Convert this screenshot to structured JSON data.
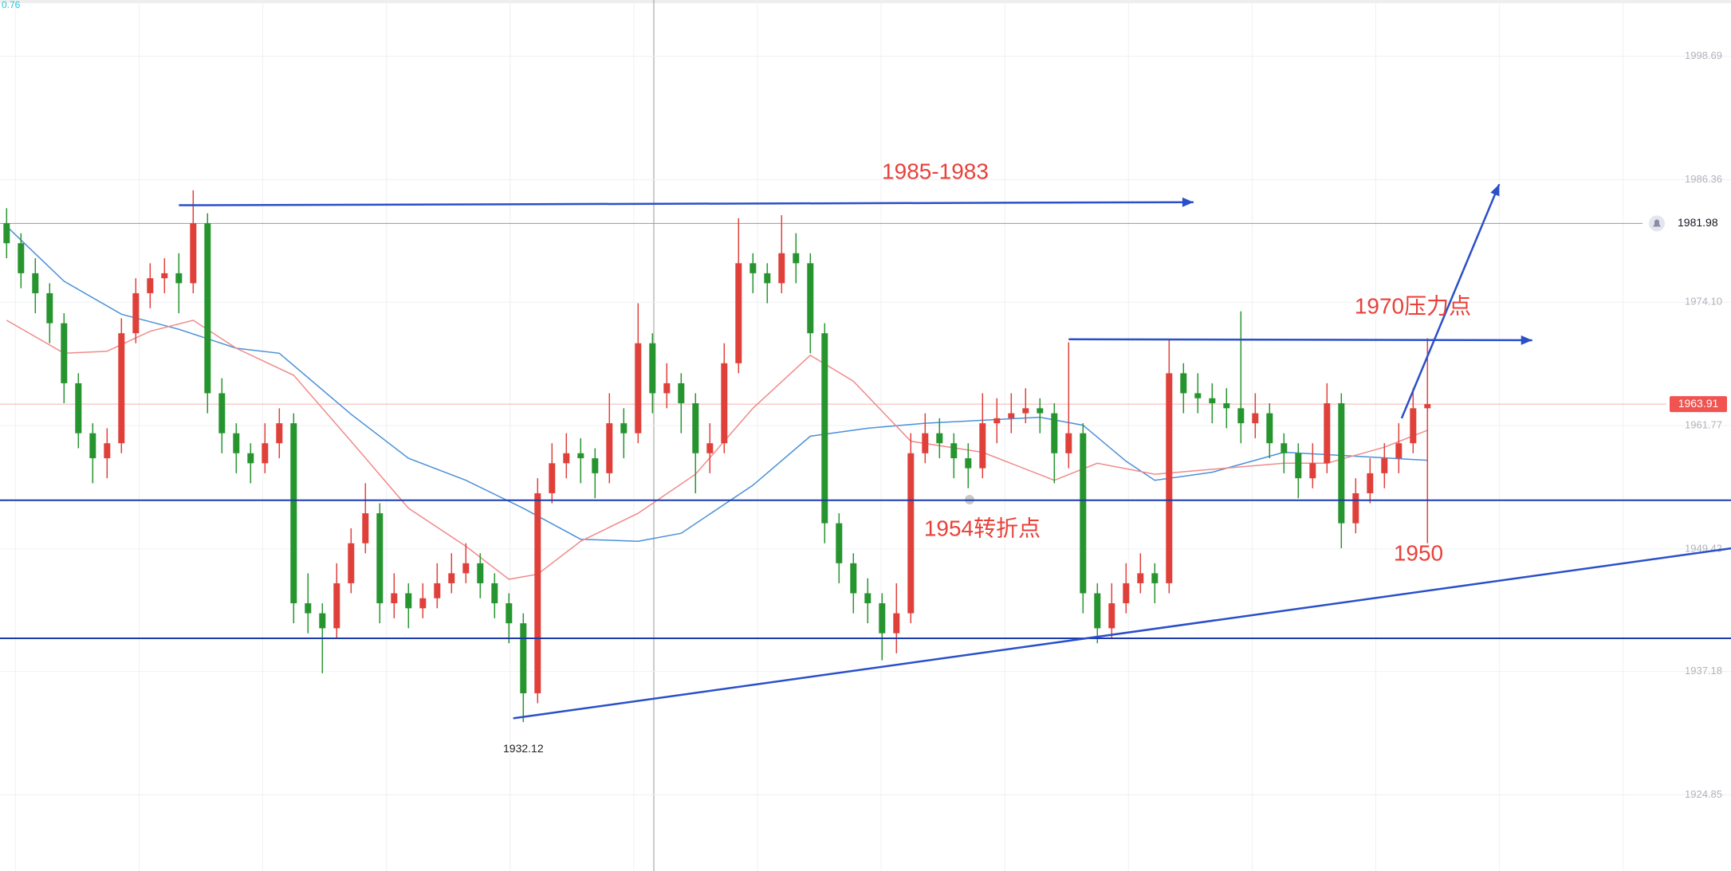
{
  "top_left_value": 0.76,
  "chart_data": {
    "type": "candlestick",
    "up_color": "#e0403a",
    "down_color": "#27952f",
    "ylim": [
      1917.23,
      2004.32
    ],
    "yticks": [
      1998.69,
      1986.36,
      {
        "value": 1974.1,
        "label": "1974.10"
      },
      1961.77,
      1949.43,
      1937.18,
      1924.85
    ],
    "grid": true,
    "candles": [
      [
        1982,
        1983.5,
        1978.5,
        1980
      ],
      [
        1980,
        1981,
        1975.5,
        1977
      ],
      [
        1977,
        1978.5,
        1973,
        1975
      ],
      [
        1975,
        1976,
        1970,
        1972
      ],
      [
        1972,
        1973,
        1964,
        1966
      ],
      [
        1966,
        1967,
        1959.5,
        1961
      ],
      [
        1961,
        1962,
        1956,
        1958.5
      ],
      [
        1958.5,
        1961.5,
        1956.5,
        1960
      ],
      [
        1960,
        1972.5,
        1959,
        1971
      ],
      [
        1971,
        1976.5,
        1970,
        1975
      ],
      [
        1975,
        1978,
        1973.5,
        1976.5
      ],
      [
        1976.5,
        1978.5,
        1975,
        1977
      ],
      [
        1977,
        1979,
        1973,
        1976
      ],
      [
        1976,
        1985.3,
        1975,
        1982
      ],
      [
        1982,
        1983,
        1963,
        1965
      ],
      [
        1965,
        1966.5,
        1959,
        1961
      ],
      [
        1961,
        1962,
        1957,
        1959
      ],
      [
        1959,
        1960,
        1956,
        1958
      ],
      [
        1958,
        1962,
        1957,
        1960
      ],
      [
        1960,
        1963.5,
        1958.5,
        1962
      ],
      [
        1962,
        1963,
        1942,
        1944
      ],
      [
        1944,
        1947,
        1941,
        1943
      ],
      [
        1943,
        1944,
        1937,
        1941.5
      ],
      [
        1941.5,
        1948,
        1940.5,
        1946
      ],
      [
        1946,
        1951.5,
        1945,
        1950
      ],
      [
        1950,
        1956,
        1949,
        1953
      ],
      [
        1953,
        1954,
        1942,
        1944
      ],
      [
        1944,
        1947,
        1942.5,
        1945
      ],
      [
        1945,
        1946,
        1941.5,
        1943.5
      ],
      [
        1943.5,
        1946,
        1942.5,
        1944.5
      ],
      [
        1944.5,
        1948,
        1943.5,
        1946
      ],
      [
        1946,
        1949,
        1945,
        1947
      ],
      [
        1947,
        1950,
        1946,
        1948
      ],
      [
        1948,
        1949,
        1944.5,
        1946
      ],
      [
        1946,
        1947,
        1942.5,
        1944
      ],
      [
        1944,
        1945,
        1940,
        1942
      ],
      [
        1942,
        1943,
        1932.12,
        1935
      ],
      [
        1935,
        1956.5,
        1934,
        1955
      ],
      [
        1955,
        1960,
        1954,
        1958
      ],
      [
        1958,
        1961,
        1956.5,
        1959
      ],
      [
        1959,
        1960.5,
        1956,
        1958.5
      ],
      [
        1958.5,
        1959.5,
        1954.5,
        1957
      ],
      [
        1957,
        1965,
        1956,
        1962
      ],
      [
        1962,
        1963.5,
        1958.5,
        1961
      ],
      [
        1961,
        1974,
        1960,
        1970
      ],
      [
        1970,
        1971,
        1963,
        1965
      ],
      [
        1965,
        1968,
        1963.5,
        1966
      ],
      [
        1966,
        1967,
        1961,
        1964
      ],
      [
        1964,
        1965,
        1955,
        1959
      ],
      [
        1959,
        1962,
        1957,
        1960
      ],
      [
        1960,
        1970,
        1959,
        1968
      ],
      [
        1968,
        1982.5,
        1967,
        1978
      ],
      [
        1978,
        1979,
        1975,
        1977
      ],
      [
        1977,
        1978,
        1974,
        1976
      ],
      [
        1976,
        1982.8,
        1975,
        1979
      ],
      [
        1979,
        1981,
        1976,
        1978
      ],
      [
        1978,
        1979,
        1969,
        1971
      ],
      [
        1971,
        1972,
        1950,
        1952
      ],
      [
        1952,
        1953,
        1946,
        1948
      ],
      [
        1948,
        1949,
        1943,
        1945
      ],
      [
        1945,
        1946.5,
        1942,
        1944
      ],
      [
        1944,
        1945,
        1938.3,
        1941
      ],
      [
        1941,
        1946,
        1939,
        1943
      ],
      [
        1943,
        1961,
        1942,
        1959
      ],
      [
        1959,
        1963,
        1958,
        1961
      ],
      [
        1961,
        1962.5,
        1958.5,
        1960
      ],
      [
        1960,
        1961,
        1956.5,
        1958.5
      ],
      [
        1958.5,
        1960,
        1955.5,
        1957.5
      ],
      [
        1957.5,
        1965,
        1956.5,
        1962
      ],
      [
        1962,
        1964.5,
        1960,
        1962.5
      ],
      [
        1962.5,
        1965,
        1961,
        1963
      ],
      [
        1963,
        1965.5,
        1962,
        1963.5
      ],
      [
        1963.5,
        1964.5,
        1961,
        1963
      ],
      [
        1963,
        1964,
        1956,
        1959
      ],
      [
        1959,
        1970.1,
        1957.5,
        1961
      ],
      [
        1961,
        1962,
        1943,
        1945
      ],
      [
        1945,
        1946,
        1940,
        1941.5
      ],
      [
        1941.5,
        1946,
        1940.5,
        1944
      ],
      [
        1944,
        1948,
        1943,
        1946
      ],
      [
        1946,
        1949,
        1945,
        1947
      ],
      [
        1947,
        1948,
        1944,
        1946
      ],
      [
        1946,
        1970.3,
        1945,
        1967
      ],
      [
        1967,
        1968,
        1963,
        1965
      ],
      [
        1965,
        1967,
        1963,
        1964.5
      ],
      [
        1964.5,
        1966,
        1962,
        1964
      ],
      [
        1964,
        1965.5,
        1961.5,
        1963.5
      ],
      [
        1963.5,
        1973.2,
        1960,
        1962
      ],
      [
        1962,
        1965,
        1960.5,
        1963
      ],
      [
        1963,
        1964,
        1958.5,
        1960
      ],
      [
        1960,
        1961,
        1957,
        1959
      ],
      [
        1959,
        1960,
        1954.5,
        1956.5
      ],
      [
        1956.5,
        1960,
        1955.5,
        1958
      ],
      [
        1958,
        1966,
        1957,
        1964
      ],
      [
        1964,
        1965,
        1949.5,
        1952
      ],
      [
        1952,
        1956.5,
        1951,
        1955
      ],
      [
        1955,
        1958.5,
        1954,
        1957
      ],
      [
        1957,
        1960,
        1955.5,
        1958.5
      ],
      [
        1958.5,
        1962,
        1957,
        1960
      ],
      [
        1960,
        1965.5,
        1959,
        1963.5
      ],
      [
        1963.5,
        1970.5,
        1950,
        1963.91
      ]
    ],
    "moving_averages": [
      {
        "color": "#4a90d9",
        "x": [
          0,
          4,
          8,
          12,
          16,
          19,
          24,
          28,
          32,
          36,
          40,
          44,
          47,
          52,
          56,
          60,
          64,
          72,
          75,
          78,
          80,
          84,
          89,
          94,
          99
        ],
        "values": [
          1981.7,
          1976.2,
          1972.9,
          1971.4,
          1969.5,
          1969,
          1962.9,
          1958.5,
          1956.3,
          1953.5,
          1950.4,
          1950.2,
          1951,
          1955.8,
          1960.7,
          1961.5,
          1962,
          1962.6,
          1961.8,
          1958.2,
          1956.3,
          1957.1,
          1959.1,
          1958.7,
          1958.3
        ]
      },
      {
        "color": "#f08a8a",
        "x": [
          0,
          4,
          7,
          10,
          13,
          16,
          20,
          24,
          28,
          32,
          35,
          37,
          40,
          44,
          48,
          52,
          56,
          59,
          63,
          68,
          73,
          76,
          80,
          84,
          89,
          92,
          96,
          99
        ],
        "values": [
          1972.3,
          1969,
          1969.2,
          1971.2,
          1972.3,
          1969.5,
          1966.8,
          1960.2,
          1953.5,
          1949.7,
          1946.4,
          1946.9,
          1950.2,
          1953,
          1956.9,
          1963.5,
          1968.8,
          1966.2,
          1960.2,
          1959.1,
          1956.3,
          1958,
          1956.9,
          1957.4,
          1958,
          1958,
          1959.6,
          1961.3
        ]
      }
    ],
    "hlines": [
      {
        "value": 1954.3,
        "color": "#1c3aa9"
      },
      {
        "value": 1940.5,
        "color": "#1c3aa9"
      }
    ],
    "drawings": [
      {
        "x": [
          35.3,
          120.2
        ],
        "values": [
          1932.5,
          1949.5
        ],
        "color": "#2a4fc9",
        "arrow": false
      },
      {
        "x": [
          12,
          82.7
        ],
        "values": [
          1983.8,
          1984.1
        ],
        "color": "#2a4fc9",
        "arrow": true
      },
      {
        "x": [
          74,
          106.3
        ],
        "values": [
          1970.4,
          1970.3
        ],
        "color": "#2a4fc9",
        "arrow": true
      },
      {
        "x": [
          97.2,
          104
        ],
        "values": [
          1962.5,
          1985.9
        ],
        "color": "#2a4fc9",
        "arrow": true
      }
    ],
    "price_line": {
      "value": 1963.91,
      "color": "#f05350"
    },
    "alert_line": {
      "value": 1981.98,
      "color": "#9a9a9a"
    },
    "annotations": [
      "1985-1983",
      "1970压力点",
      "1954转折点",
      "1950"
    ],
    "annotation_color": "#e8413a"
  }
}
